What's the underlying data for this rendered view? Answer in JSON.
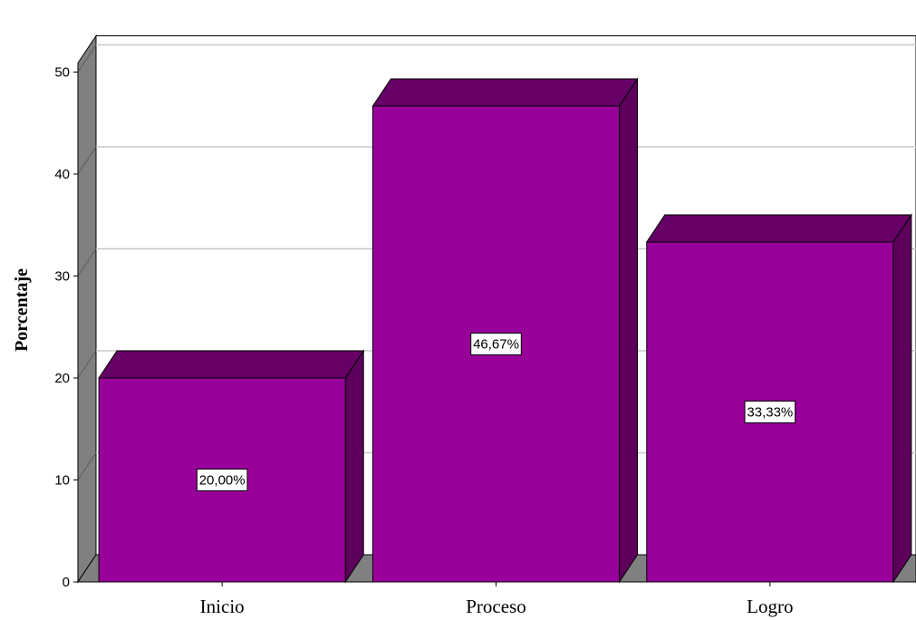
{
  "chart_data": {
    "type": "bar",
    "categories": [
      "Inicio",
      "Proceso",
      "Logro"
    ],
    "values": [
      20.0,
      46.67,
      33.33
    ],
    "data_labels": [
      "20,00%",
      "46,67%",
      "33,33%"
    ],
    "ylabel": "Porcentaje",
    "xlabel": "",
    "ylim": [
      0,
      50
    ],
    "yticks": [
      0,
      10,
      20,
      30,
      40,
      50
    ],
    "grid": true,
    "style": "3d",
    "colors": {
      "bar_front": "#990099",
      "bar_top": "#660066",
      "bar_side": "#5c005c",
      "wall": "#808080",
      "floor": "#808080",
      "grid": "#c8c8c8"
    }
  }
}
